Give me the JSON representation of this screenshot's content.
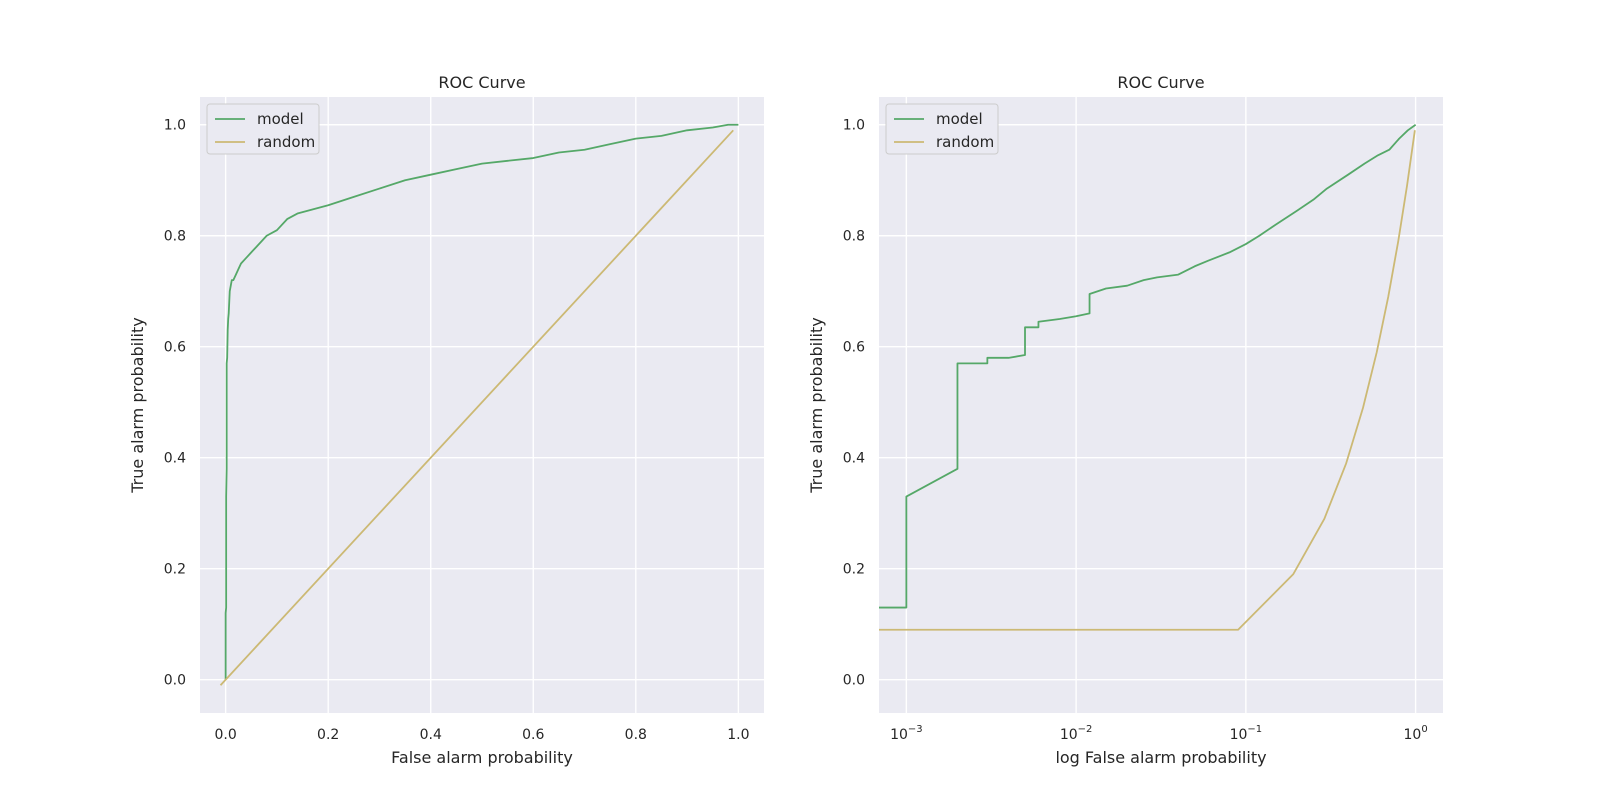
{
  "colors": {
    "model": "#55a868",
    "random": "#ccb974",
    "plot_bg": "#eaeaf2",
    "grid": "#ffffff",
    "text": "#262626"
  },
  "chart_data": [
    {
      "type": "line",
      "title": "ROC Curve",
      "xlabel": "False alarm probability",
      "ylabel": "True alarm probability",
      "xscale": "linear",
      "xlim": [
        -0.05,
        1.05
      ],
      "ylim": [
        -0.06,
        1.05
      ],
      "xticks": [
        0.0,
        0.2,
        0.4,
        0.6,
        0.8,
        1.0
      ],
      "xtick_labels": [
        "0.0",
        "0.2",
        "0.4",
        "0.6",
        "0.8",
        "1.0"
      ],
      "yticks": [
        0.0,
        0.2,
        0.4,
        0.6,
        0.8,
        1.0
      ],
      "ytick_labels": [
        "0.0",
        "0.2",
        "0.4",
        "0.6",
        "0.8",
        "1.0"
      ],
      "legend_position": "upper-left",
      "series": [
        {
          "name": "model",
          "x": [
            0.0,
            0.0,
            0.001,
            0.001,
            0.002,
            0.002,
            0.003,
            0.004,
            0.005,
            0.006,
            0.008,
            0.01,
            0.012,
            0.015,
            0.02,
            0.025,
            0.03,
            0.04,
            0.05,
            0.06,
            0.08,
            0.1,
            0.12,
            0.14,
            0.16,
            0.2,
            0.25,
            0.3,
            0.35,
            0.4,
            0.45,
            0.5,
            0.55,
            0.6,
            0.65,
            0.7,
            0.75,
            0.8,
            0.85,
            0.9,
            0.95,
            0.98,
            1.0
          ],
          "y": [
            0.0,
            0.12,
            0.13,
            0.33,
            0.38,
            0.57,
            0.58,
            0.63,
            0.65,
            0.66,
            0.7,
            0.71,
            0.72,
            0.72,
            0.73,
            0.74,
            0.75,
            0.76,
            0.77,
            0.78,
            0.8,
            0.81,
            0.83,
            0.84,
            0.845,
            0.855,
            0.87,
            0.885,
            0.9,
            0.91,
            0.92,
            0.93,
            0.935,
            0.94,
            0.95,
            0.955,
            0.965,
            0.975,
            0.98,
            0.99,
            0.995,
            1.0,
            1.0
          ]
        },
        {
          "name": "random",
          "x": [
            -0.01,
            0.99
          ],
          "y": [
            -0.01,
            0.99
          ]
        }
      ]
    },
    {
      "type": "line",
      "title": "ROC Curve",
      "xlabel": "log False alarm probability",
      "ylabel": "True alarm probability",
      "xscale": "log",
      "xlim": [
        0.00069,
        1.45
      ],
      "ylim": [
        -0.06,
        1.05
      ],
      "xticks": [
        0.001,
        0.01,
        0.1,
        1.0
      ],
      "xtick_labels": [
        {
          "base": "10",
          "exp": "−3"
        },
        {
          "base": "10",
          "exp": "−2"
        },
        {
          "base": "10",
          "exp": "−1"
        },
        {
          "base": "10",
          "exp": "0"
        }
      ],
      "yticks": [
        0.0,
        0.2,
        0.4,
        0.6,
        0.8,
        1.0
      ],
      "ytick_labels": [
        "0.0",
        "0.2",
        "0.4",
        "0.6",
        "0.8",
        "1.0"
      ],
      "legend_position": "upper-left",
      "series": [
        {
          "name": "model",
          "x": [
            0.00069,
            0.001,
            0.001,
            0.002,
            0.002,
            0.003,
            0.003,
            0.004,
            0.005,
            0.005,
            0.006,
            0.006,
            0.008,
            0.01,
            0.012,
            0.012,
            0.015,
            0.02,
            0.025,
            0.03,
            0.04,
            0.05,
            0.06,
            0.08,
            0.1,
            0.12,
            0.15,
            0.2,
            0.25,
            0.3,
            0.4,
            0.5,
            0.6,
            0.7,
            0.8,
            0.9,
            1.0
          ],
          "y": [
            0.13,
            0.13,
            0.33,
            0.38,
            0.57,
            0.57,
            0.58,
            0.58,
            0.585,
            0.635,
            0.635,
            0.645,
            0.65,
            0.655,
            0.66,
            0.695,
            0.705,
            0.71,
            0.72,
            0.725,
            0.73,
            0.745,
            0.755,
            0.77,
            0.785,
            0.8,
            0.82,
            0.845,
            0.865,
            0.885,
            0.91,
            0.93,
            0.945,
            0.955,
            0.975,
            0.99,
            1.0
          ]
        },
        {
          "name": "random",
          "x": [
            0.00069,
            0.09,
            0.19,
            0.29,
            0.39,
            0.49,
            0.59,
            0.69,
            0.79,
            0.89,
            0.99
          ],
          "y": [
            0.09,
            0.09,
            0.19,
            0.29,
            0.39,
            0.49,
            0.59,
            0.69,
            0.79,
            0.89,
            0.99
          ]
        }
      ]
    }
  ]
}
